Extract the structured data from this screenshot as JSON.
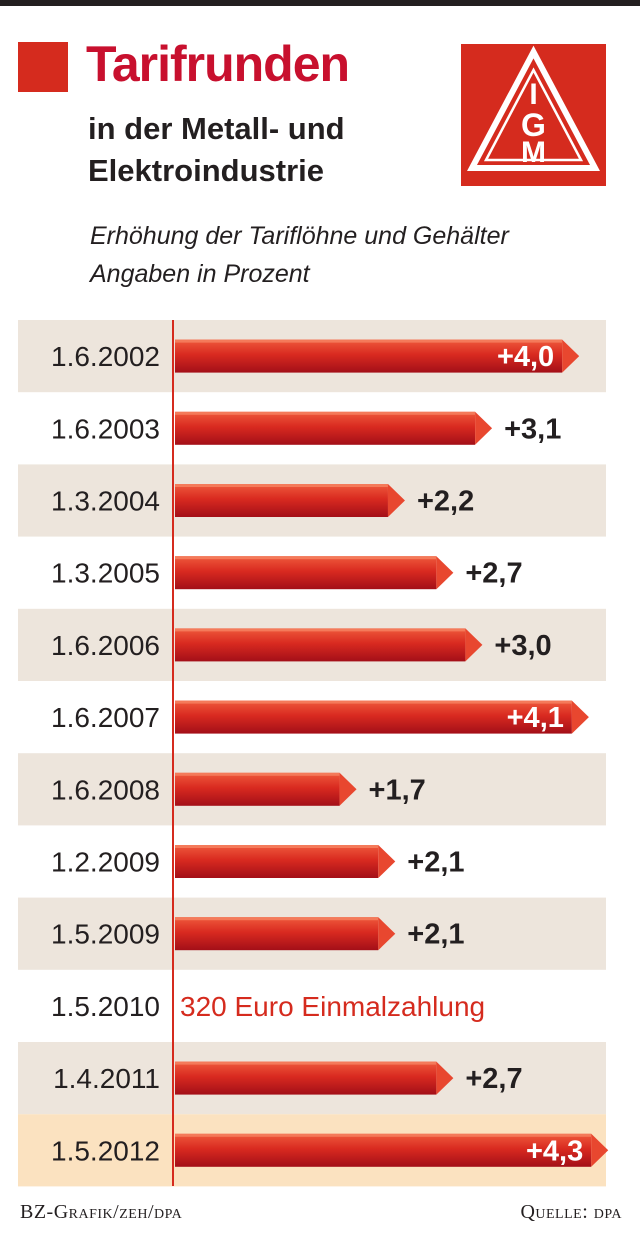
{
  "header": {
    "title": "Tarifrunden",
    "subtitle_line1": "in der Metall- und",
    "subtitle_line2": "Elektroindustrie",
    "desc_line1": "Erhöhung der Tariflöhne und Gehälter",
    "desc_line2": "Angaben in Prozent"
  },
  "logo": {
    "icon": "ig-metall-logo",
    "letters": [
      "I",
      "G",
      "M"
    ]
  },
  "footer": {
    "credit": "BZ-Grafik/zeh/dpa",
    "source": "Quelle: dpa"
  },
  "colors": {
    "accent": "#d52b1e",
    "bar_light": "#e8472f",
    "bar_dark": "#b5121b",
    "row_shade": "#ede5dc",
    "row_highlight": "#fbe2c0",
    "text": "#231f20"
  },
  "chart_data": {
    "type": "bar",
    "orientation": "horizontal",
    "title": "Tarifrunden",
    "xlim": [
      0,
      4.3
    ],
    "categories": [
      "1.6.2002",
      "1.6.2003",
      "1.3.2004",
      "1.3.2005",
      "1.6.2006",
      "1.6.2007",
      "1.6.2008",
      "1.2.2009",
      "1.5.2009",
      "1.5.2010",
      "1.4.2011",
      "1.5.2012"
    ],
    "values": [
      4.0,
      3.1,
      2.2,
      2.7,
      3.0,
      4.1,
      1.7,
      2.1,
      2.1,
      null,
      2.7,
      4.3
    ],
    "labels": [
      "+4,0",
      "+3,1",
      "+2,2",
      "+2,7",
      "+3,0",
      "+4,1",
      "+1,7",
      "+2,1",
      "+2,1",
      "320 Euro Einmalzahlung",
      "+2,7",
      "+4,3"
    ],
    "highlighted_category": "1.5.2012"
  }
}
